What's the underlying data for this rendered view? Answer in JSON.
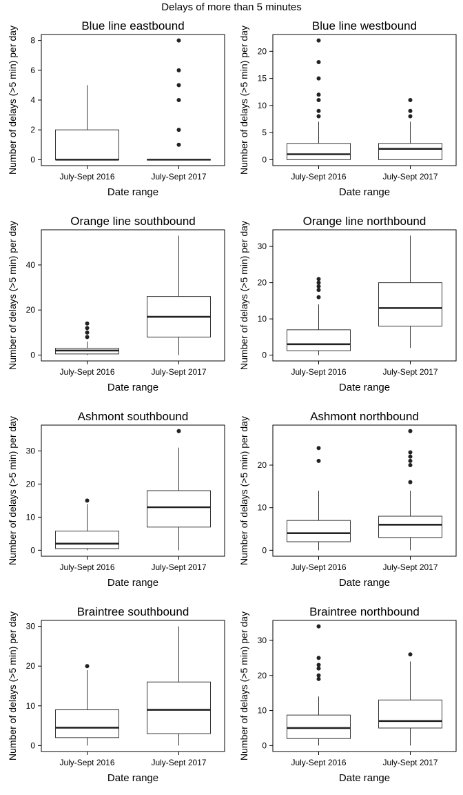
{
  "title": "Delays of more than 5 minutes",
  "chart_data": [
    {
      "type": "box",
      "title": "Blue line eastbound",
      "xlabel": "Date range",
      "ylabel": "Number of delays (>5 min) per day",
      "categories": [
        "July-Sept 2016",
        "July-Sept 2017"
      ],
      "ylim": [
        -0.4,
        8.4
      ],
      "yticks": [
        0,
        2,
        4,
        6,
        8
      ],
      "boxes": [
        {
          "q1": 0,
          "median": 0,
          "q3": 2,
          "whisker_low": 0,
          "whisker_high": 5,
          "outliers": []
        },
        {
          "q1": 0,
          "median": 0,
          "q3": 0,
          "whisker_low": 0,
          "whisker_high": 0,
          "outliers": [
            1,
            2,
            4,
            5,
            6,
            8
          ]
        }
      ]
    },
    {
      "type": "box",
      "title": "Blue line westbound",
      "xlabel": "Date range",
      "ylabel": "Number of delays (>5 min) per day",
      "categories": [
        "July-Sept 2016",
        "July-Sept 2017"
      ],
      "ylim": [
        -1.1,
        23.1
      ],
      "yticks": [
        0,
        5,
        10,
        15,
        20
      ],
      "boxes": [
        {
          "q1": 0,
          "median": 1,
          "q3": 3,
          "whisker_low": 0,
          "whisker_high": 7,
          "outliers": [
            8,
            9,
            11,
            12,
            15,
            18,
            22
          ]
        },
        {
          "q1": 0,
          "median": 2,
          "q3": 3,
          "whisker_low": 0,
          "whisker_high": 7,
          "outliers": [
            8,
            9,
            11
          ]
        }
      ]
    },
    {
      "type": "box",
      "title": "Orange line southbound",
      "xlabel": "Date range",
      "ylabel": "Number of delays (>5 min) per day",
      "categories": [
        "July-Sept 2016",
        "July-Sept 2017"
      ],
      "ylim": [
        -2.6,
        55.6
      ],
      "yticks": [
        0,
        20,
        40
      ],
      "boxes": [
        {
          "q1": 0.5,
          "median": 2,
          "q3": 3,
          "whisker_low": 0,
          "whisker_high": 6,
          "outliers": [
            8,
            10,
            12,
            14
          ]
        },
        {
          "q1": 8,
          "median": 17,
          "q3": 26,
          "whisker_low": 0,
          "whisker_high": 53,
          "outliers": []
        }
      ]
    },
    {
      "type": "box",
      "title": "Orange line northbound",
      "xlabel": "Date range",
      "ylabel": "Number of delays (>5 min) per day",
      "categories": [
        "July-Sept 2016",
        "July-Sept 2017"
      ],
      "ylim": [
        -1.6,
        34.6
      ],
      "yticks": [
        0,
        10,
        20,
        30
      ],
      "boxes": [
        {
          "q1": 1.2,
          "median": 3,
          "q3": 7,
          "whisker_low": 0,
          "whisker_high": 14,
          "outliers": [
            16,
            18,
            19,
            20,
            21
          ]
        },
        {
          "q1": 8,
          "median": 13,
          "q3": 20,
          "whisker_low": 2,
          "whisker_high": 33,
          "outliers": []
        }
      ]
    },
    {
      "type": "box",
      "title": "Ashmont southbound",
      "xlabel": "Date range",
      "ylabel": "Number of delays (>5 min) per day",
      "categories": [
        "July-Sept 2016",
        "July-Sept 2017"
      ],
      "ylim": [
        -1.8,
        37.8
      ],
      "yticks": [
        0,
        10,
        20,
        30
      ],
      "boxes": [
        {
          "q1": 0.5,
          "median": 2,
          "q3": 5.8,
          "whisker_low": 0,
          "whisker_high": 14,
          "outliers": [
            15
          ]
        },
        {
          "q1": 7,
          "median": 13,
          "q3": 18,
          "whisker_low": 0,
          "whisker_high": 31,
          "outliers": [
            36
          ]
        }
      ]
    },
    {
      "type": "box",
      "title": "Ashmont northbound",
      "xlabel": "Date range",
      "ylabel": "Number of delays (>5 min) per day",
      "categories": [
        "July-Sept 2016",
        "July-Sept 2017"
      ],
      "ylim": [
        -1.4,
        29.4
      ],
      "yticks": [
        0,
        10,
        20
      ],
      "boxes": [
        {
          "q1": 2,
          "median": 4,
          "q3": 7,
          "whisker_low": 0,
          "whisker_high": 14,
          "outliers": [
            21,
            24
          ]
        },
        {
          "q1": 3,
          "median": 6,
          "q3": 8,
          "whisker_low": 0,
          "whisker_high": 14,
          "outliers": [
            16,
            20,
            21,
            22,
            23,
            28
          ]
        }
      ]
    },
    {
      "type": "box",
      "title": "Braintree southbound",
      "xlabel": "Date range",
      "ylabel": "Number of delays (>5 min) per day",
      "categories": [
        "July-Sept 2016",
        "July-Sept 2017"
      ],
      "ylim": [
        -1.5,
        31.5
      ],
      "yticks": [
        0,
        10,
        20,
        30
      ],
      "boxes": [
        {
          "q1": 2,
          "median": 4.5,
          "q3": 9,
          "whisker_low": 0,
          "whisker_high": 19,
          "outliers": [
            20
          ]
        },
        {
          "q1": 3,
          "median": 9,
          "q3": 16,
          "whisker_low": 0,
          "whisker_high": 30,
          "outliers": []
        }
      ]
    },
    {
      "type": "box",
      "title": "Braintree northbound",
      "xlabel": "Date range",
      "ylabel": "Number of delays (>5 min) per day",
      "categories": [
        "July-Sept 2016",
        "July-Sept 2017"
      ],
      "ylim": [
        -1.7,
        35.7
      ],
      "yticks": [
        0,
        10,
        20,
        30
      ],
      "boxes": [
        {
          "q1": 2,
          "median": 5,
          "q3": 8.7,
          "whisker_low": 0,
          "whisker_high": 14,
          "outliers": [
            19,
            20,
            22,
            23,
            25,
            34
          ]
        },
        {
          "q1": 5,
          "median": 7,
          "q3": 13,
          "whisker_low": 0,
          "whisker_high": 24,
          "outliers": [
            26
          ]
        }
      ]
    }
  ]
}
